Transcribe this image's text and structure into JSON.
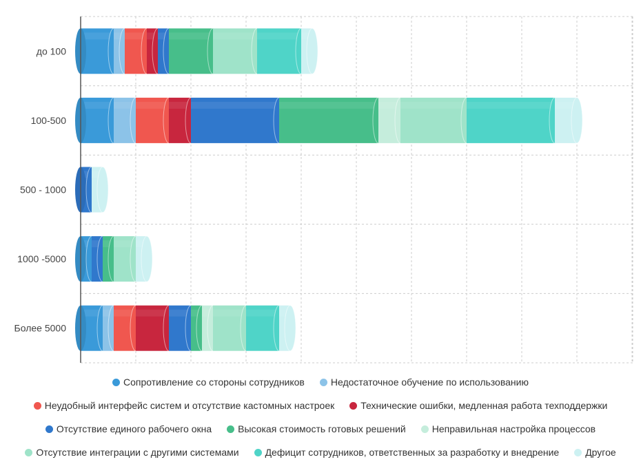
{
  "chart_data": {
    "type": "bar",
    "orientation": "horizontal",
    "stacked": true,
    "style": "cylinder",
    "grid": true,
    "legend_placement": "bottom",
    "categories": [
      "до 100",
      "100-500",
      "500 - 1000",
      "1000 -5000",
      "Более 5000"
    ],
    "xlim": [
      0,
      10
    ],
    "series": [
      {
        "name": "Сопротивление со стороны сотрудников",
        "color": "#3a9ad9",
        "values": [
          0.6,
          0.6,
          0.0,
          0.2,
          0.4
        ]
      },
      {
        "name": "Недостаточное обучение по использованию",
        "color": "#8cc3e8",
        "values": [
          0.2,
          0.4,
          0.0,
          0.0,
          0.2
        ]
      },
      {
        "name": "Неудобный интерфейс систем и отсутствие кастомных настроек",
        "color": "#f0574f",
        "values": [
          0.4,
          0.6,
          0.0,
          0.0,
          0.4
        ]
      },
      {
        "name": "Технические ошибки, медленная работа техподдержки",
        "color": "#c8263e",
        "values": [
          0.2,
          0.4,
          0.0,
          0.0,
          0.6
        ]
      },
      {
        "name": "Отсутствие единого рабочего окна",
        "color": "#3078cc",
        "values": [
          0.2,
          1.6,
          0.2,
          0.2,
          0.4
        ]
      },
      {
        "name": "Высокая стоимость готовых решений",
        "color": "#47be8a",
        "values": [
          0.8,
          1.8,
          0.0,
          0.2,
          0.2
        ]
      },
      {
        "name": "Неправильная настройка процессов",
        "color": "#c5eddc",
        "values": [
          0.0,
          0.4,
          0.0,
          0.0,
          0.2
        ]
      },
      {
        "name": "Отсутствие интеграции с другими системами",
        "color": "#9fe3c9",
        "values": [
          0.8,
          1.2,
          0.0,
          0.4,
          0.6
        ]
      },
      {
        "name": "Дефицит сотрудников, ответственных за разработку и внедрение",
        "color": "#4fd4c8",
        "values": [
          0.8,
          1.6,
          0.0,
          0.0,
          0.6
        ]
      },
      {
        "name": "Другое",
        "color": "#cdf1f2",
        "values": [
          0.2,
          0.4,
          0.2,
          0.2,
          0.2
        ]
      }
    ]
  },
  "colors": {
    "grid": "#cccccc",
    "axis": "#555555",
    "label": "#444444"
  }
}
